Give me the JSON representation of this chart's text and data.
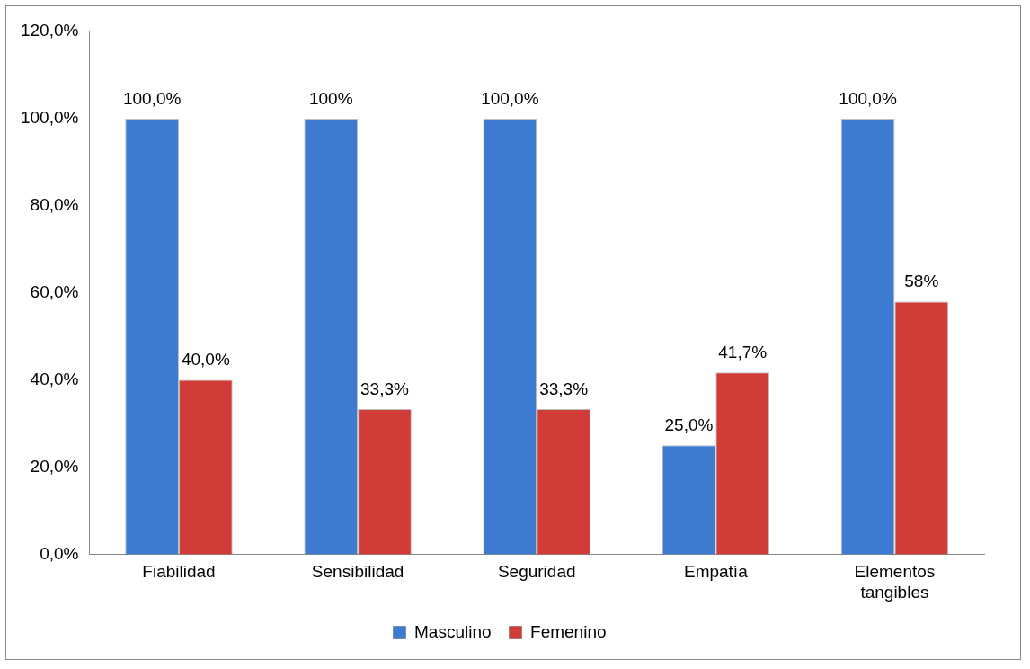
{
  "chart_data": {
    "type": "bar",
    "categories": [
      "Fiabilidad",
      "Sensibilidad",
      "Seguridad",
      "Empatía",
      "Elementos tangibles"
    ],
    "series": [
      {
        "name": "Masculino",
        "color": "#3c7bd0",
        "values": [
          100,
          100,
          100,
          25,
          100
        ],
        "value_labels": [
          "100,0%",
          "100%",
          "100,0%",
          "25,0%",
          "100,0%"
        ]
      },
      {
        "name": "Femenino",
        "color": "#d13b38",
        "values": [
          40,
          33.3,
          33.3,
          41.7,
          58
        ],
        "value_labels": [
          "40,0%",
          "33,3%",
          "33,3%",
          "41,7%",
          "58%"
        ]
      }
    ],
    "ylim": [
      0,
      120
    ],
    "yticks": [
      {
        "value": 0,
        "label": "0,0%"
      },
      {
        "value": 20,
        "label": "20,0%"
      },
      {
        "value": 40,
        "label": "40,0%"
      },
      {
        "value": 60,
        "label": "60,0%"
      },
      {
        "value": 80,
        "label": "80,0%"
      },
      {
        "value": 100,
        "label": "100,0%"
      },
      {
        "value": 120,
        "label": "120,0%"
      }
    ],
    "grid": false,
    "legend": "bottom"
  }
}
